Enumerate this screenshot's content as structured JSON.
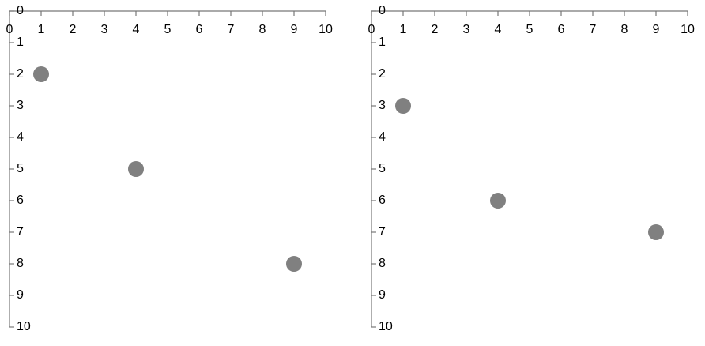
{
  "chart_data": [
    {
      "type": "scatter",
      "x": [
        1,
        4,
        9
      ],
      "y": [
        2,
        5,
        8
      ],
      "color": "#808080",
      "xlim": [
        0,
        10
      ],
      "ylim": [
        0,
        10
      ],
      "xticks": [
        0,
        1,
        2,
        3,
        4,
        5,
        6,
        7,
        8,
        9,
        10
      ],
      "yticks": [
        0,
        1,
        2,
        3,
        4,
        5,
        6,
        7,
        8,
        9,
        10
      ]
    },
    {
      "type": "scatter",
      "x": [
        1,
        4,
        9
      ],
      "y": [
        3,
        6,
        7
      ],
      "color": "#808080",
      "xlim": [
        0,
        10
      ],
      "ylim": [
        0,
        10
      ],
      "xticks": [
        0,
        1,
        2,
        3,
        4,
        5,
        6,
        7,
        8,
        9,
        10
      ],
      "yticks": [
        0,
        1,
        2,
        3,
        4,
        5,
        6,
        7,
        8,
        9,
        10
      ]
    }
  ]
}
